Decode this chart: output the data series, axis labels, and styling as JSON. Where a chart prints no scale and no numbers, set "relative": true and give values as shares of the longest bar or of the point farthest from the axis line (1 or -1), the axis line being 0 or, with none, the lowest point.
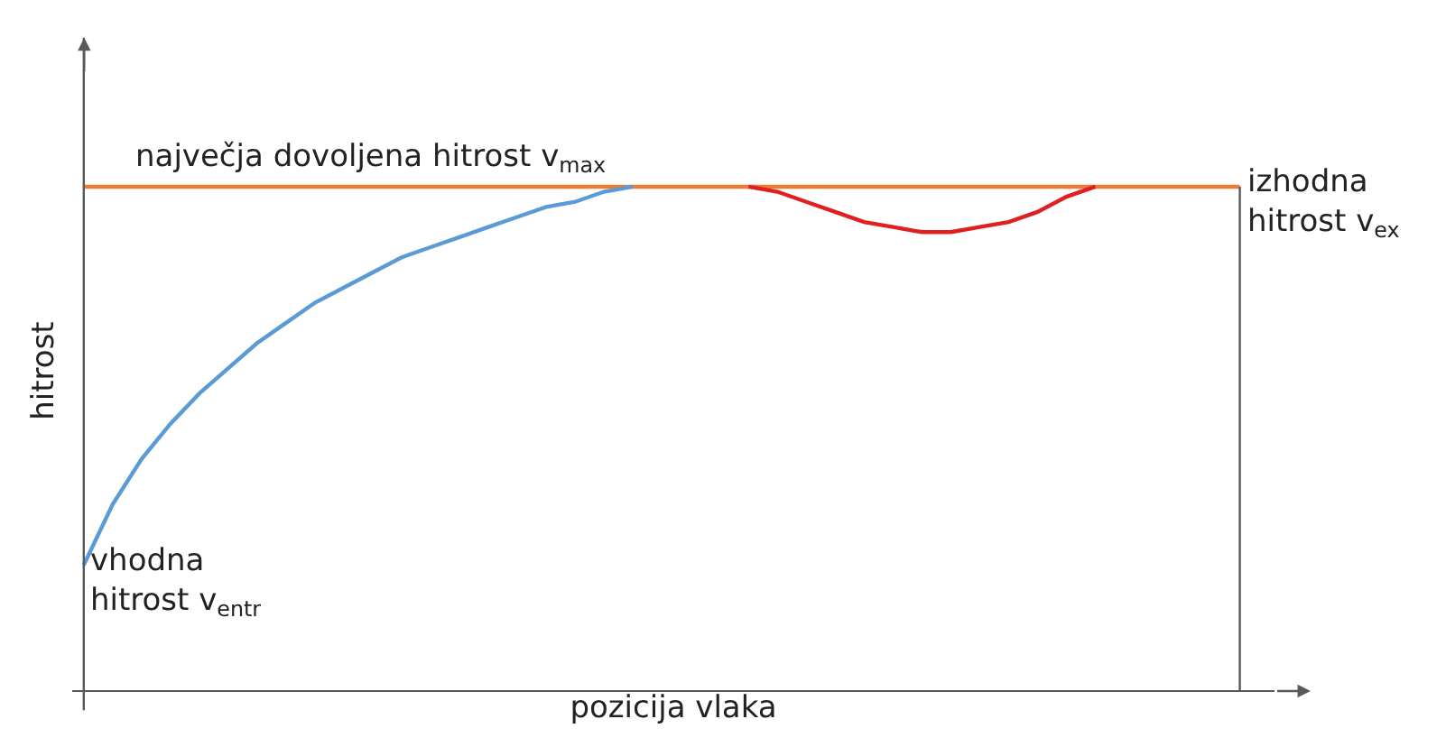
{
  "chart_data": {
    "type": "line",
    "relative": true,
    "xlabel": "pozicija vlaka",
    "ylabel": "hitrost",
    "grid": false,
    "marker": "none",
    "line_style": "solid",
    "categories": [
      null,
      null,
      null,
      null,
      null,
      null,
      null,
      null,
      null,
      null,
      null,
      null,
      null,
      null,
      null,
      null,
      null,
      null,
      null,
      null,
      null,
      null,
      null,
      null,
      null,
      null,
      null,
      null,
      null,
      null,
      null,
      null,
      null,
      null,
      null,
      null,
      null,
      null,
      null,
      null,
      null
    ],
    "series": [
      {
        "color": "#ed7d31",
        "values": [
          1,
          1,
          1,
          1,
          1,
          1,
          1,
          1,
          1,
          1,
          1,
          1,
          1,
          1,
          1,
          1,
          1,
          1,
          1,
          1,
          1,
          1,
          1,
          1,
          1,
          1,
          1,
          1,
          1,
          1,
          1,
          1,
          1,
          1,
          1,
          1,
          1,
          1,
          1,
          1,
          1
        ]
      },
      {
        "color": "#5b9bd5",
        "values": [
          0.25,
          0.37,
          0.46,
          0.53,
          0.59,
          0.64,
          0.69,
          0.73,
          0.77,
          0.8,
          0.83,
          0.86,
          0.88,
          0.9,
          0.92,
          0.94,
          0.96,
          0.97,
          0.99,
          1,
          null,
          null,
          null,
          null,
          null,
          null,
          null,
          null,
          null,
          null,
          null,
          null,
          null,
          null,
          null,
          null,
          null,
          null,
          null,
          null,
          null
        ]
      },
      {
        "color": "#e02020",
        "values": [
          null,
          null,
          null,
          null,
          null,
          null,
          null,
          null,
          null,
          null,
          null,
          null,
          null,
          null,
          null,
          null,
          null,
          null,
          null,
          null,
          null,
          null,
          null,
          1,
          0.99,
          0.97,
          0.95,
          0.93,
          0.92,
          0.91,
          0.91,
          0.92,
          0.93,
          0.95,
          0.98,
          1,
          null,
          null,
          null,
          null,
          null
        ]
      }
    ],
    "annotations": [
      "največja dovoljena hitrost v$_{max}$",
      "izhodna\nhitrost v$_{ex}$",
      "vhodna\nhitrost v$_{entr}$"
    ]
  }
}
